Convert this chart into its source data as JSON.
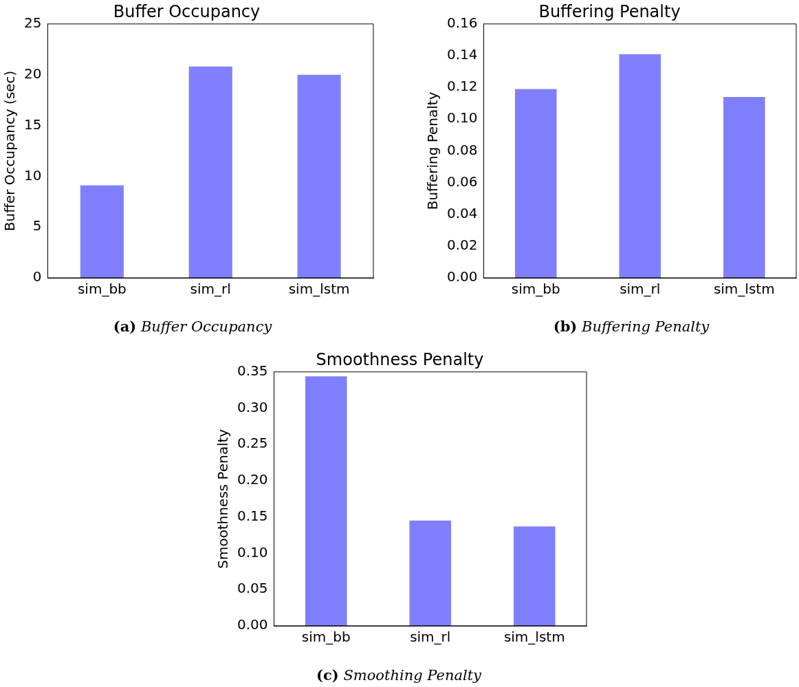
{
  "chart_data": [
    {
      "type": "bar",
      "title": "Buffer Occupancy",
      "ylabel": "Buffer Occupancy (sec)",
      "categories": [
        "sim_bb",
        "sim_rl",
        "sim_lstm"
      ],
      "values": [
        9.1,
        20.8,
        20.0
      ],
      "color": "#8080ff",
      "ylim": [
        0,
        25
      ],
      "yticks": [
        0,
        5,
        10,
        15,
        20,
        25
      ],
      "grid": false,
      "legend": false,
      "annotations": [
        "(a) Buffer Occupancy"
      ]
    },
    {
      "type": "bar",
      "title": "Buffering Penalty",
      "ylabel": "Buffering Penalty",
      "categories": [
        "sim_bb",
        "sim_rl",
        "sim_lstm"
      ],
      "values": [
        0.119,
        0.141,
        0.114
      ],
      "color": "#8080ff",
      "ylim": [
        0,
        0.16
      ],
      "yticks": [
        {
          "value": 0,
          "label": "0.00"
        },
        {
          "value": 0.02,
          "label": "0.02"
        },
        {
          "value": 0.04,
          "label": "0.04"
        },
        {
          "value": 0.06,
          "label": "0.06"
        },
        {
          "value": 0.08,
          "label": "0.08"
        },
        {
          "value": 0.1,
          "label": "0.10"
        },
        {
          "value": 0.12,
          "label": "0.12"
        },
        {
          "value": 0.14,
          "label": "0.14"
        },
        {
          "value": 0.16,
          "label": "0.16"
        }
      ],
      "grid": false,
      "legend": false,
      "annotations": [
        "(b) Buffering Penalty"
      ]
    },
    {
      "type": "bar",
      "title": "Smoothness Penalty",
      "ylabel": "Smoothness Penalty",
      "categories": [
        "sim_bb",
        "sim_rl",
        "sim_lstm"
      ],
      "values": [
        0.344,
        0.145,
        0.137
      ],
      "color": "#8080ff",
      "ylim": [
        0,
        0.35
      ],
      "yticks": [
        {
          "value": 0,
          "label": "0.00"
        },
        {
          "value": 0.05,
          "label": "0.05"
        },
        {
          "value": 0.1,
          "label": "0.10"
        },
        {
          "value": 0.15,
          "label": "0.15"
        },
        {
          "value": 0.2,
          "label": "0.20"
        },
        {
          "value": 0.25,
          "label": "0.25"
        },
        {
          "value": 0.3,
          "label": "0.30"
        },
        {
          "value": 0.35,
          "label": "0.35"
        }
      ],
      "grid": false,
      "legend": false,
      "annotations": [
        "(c) Smoothing Penalty"
      ]
    }
  ]
}
